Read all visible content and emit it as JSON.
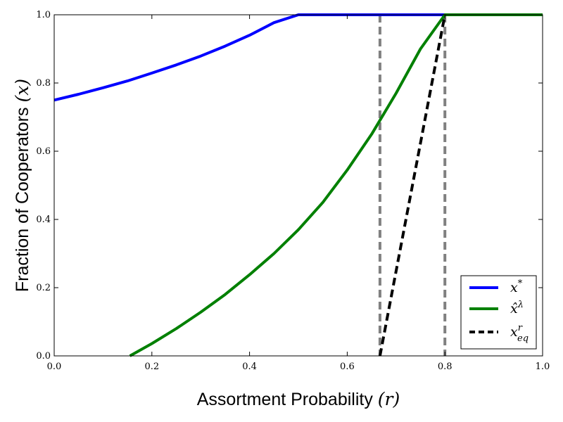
{
  "chart_data": {
    "type": "line",
    "xlabel_text": "Assortment Probability ",
    "xlabel_math": "(r)",
    "ylabel_text": "Fraction of Cooperators ",
    "ylabel_math": "(x)",
    "xlim": [
      0.0,
      1.0
    ],
    "ylim": [
      0.0,
      1.0
    ],
    "x_ticks": [
      0.0,
      0.2,
      0.4,
      0.6,
      0.8,
      1.0
    ],
    "y_ticks": [
      0.0,
      0.2,
      0.4,
      0.6,
      0.8,
      1.0
    ],
    "x_tick_labels": [
      "0.0",
      "0.2",
      "0.4",
      "0.6",
      "0.8",
      "1.0"
    ],
    "y_tick_labels": [
      "0.0",
      "0.2",
      "0.4",
      "0.6",
      "0.8",
      "1.0"
    ],
    "grid": false,
    "legend_position": "lower-right",
    "series": [
      {
        "name": "x*",
        "legend_base": "x",
        "legend_sup": "*",
        "color": "#0000ff",
        "style": "solid",
        "x": [
          0.0,
          0.05,
          0.1,
          0.15,
          0.2,
          0.25,
          0.3,
          0.35,
          0.4,
          0.45,
          0.5,
          1.0
        ],
        "y": [
          0.75,
          0.767,
          0.786,
          0.806,
          0.829,
          0.853,
          0.879,
          0.908,
          0.94,
          0.977,
          1.0,
          1.0
        ]
      },
      {
        "name": "x̂λ",
        "legend_base": "x̂",
        "legend_sup": "λ",
        "color": "#008000",
        "style": "solid",
        "x": [
          0.155,
          0.2,
          0.25,
          0.3,
          0.35,
          0.4,
          0.45,
          0.5,
          0.55,
          0.6,
          0.65,
          0.7,
          0.75,
          0.8,
          1.0
        ],
        "y": [
          0.0,
          0.036,
          0.08,
          0.128,
          0.18,
          0.238,
          0.3,
          0.37,
          0.45,
          0.545,
          0.65,
          0.77,
          0.9,
          1.0,
          1.0
        ]
      },
      {
        "name": "x_eq^r",
        "legend_base": "x",
        "legend_sup": "r",
        "legend_sub": "eq",
        "color": "#000000",
        "style": "dashed",
        "x": [
          0.667,
          0.8
        ],
        "y": [
          0.0,
          1.0
        ]
      }
    ],
    "vertical_lines": [
      {
        "x": 0.667,
        "color": "#808080",
        "style": "dashed"
      },
      {
        "x": 0.8,
        "color": "#808080",
        "style": "dashed"
      }
    ]
  }
}
